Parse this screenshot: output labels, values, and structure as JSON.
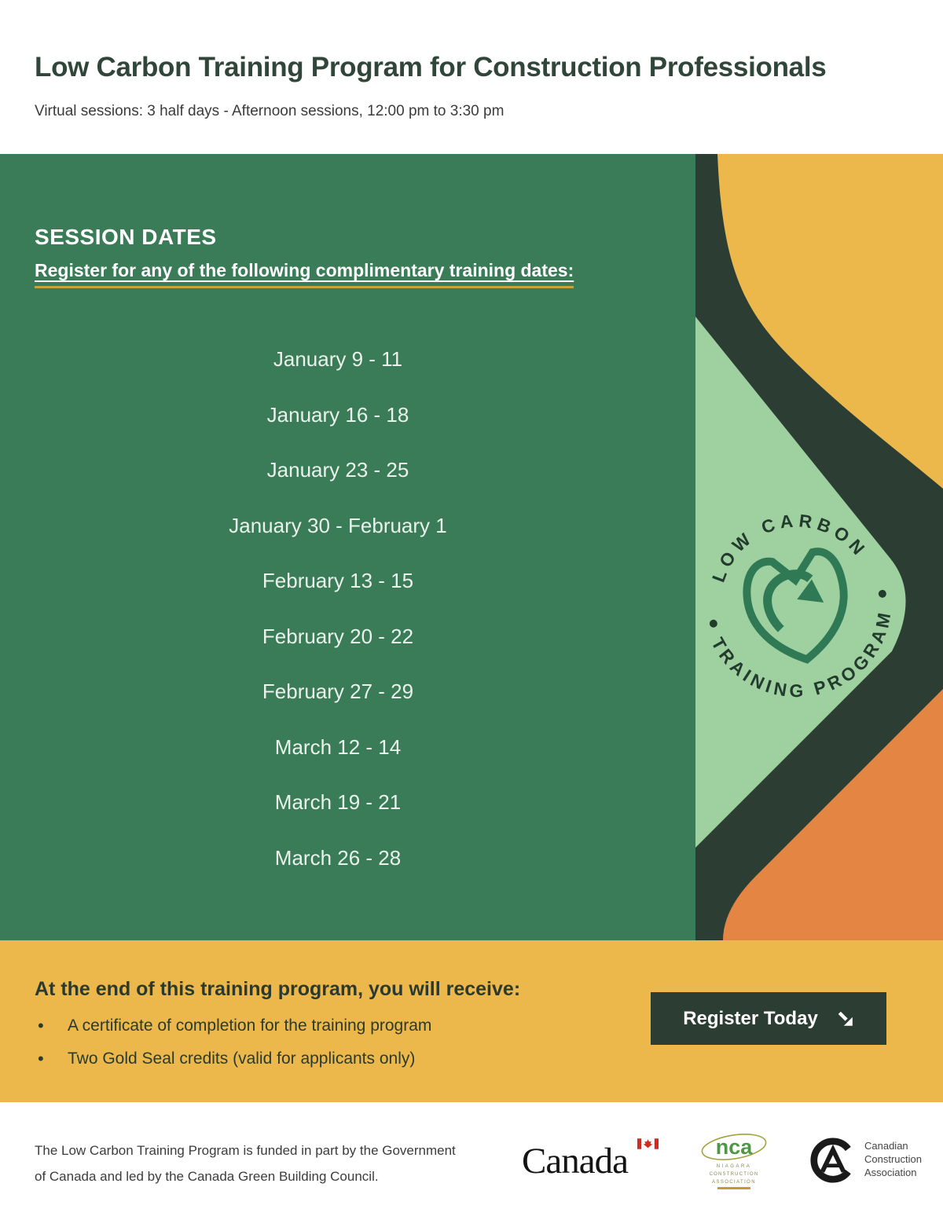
{
  "colors": {
    "title_green": "#31463A",
    "main_green": "#3A7B58",
    "dark_green": "#2C3E33",
    "yellow": "#ECB84B",
    "light_green": "#9ED0A0",
    "orange": "#E58544",
    "gold_underline": "#C9A23C",
    "flag_red": "#D52B1E"
  },
  "header": {
    "title": "Low Carbon Training Program for Construction Professionals",
    "subtitle": "Virtual sessions: 3 half days - Afternoon sessions, 12:00 pm to 3:30 pm"
  },
  "session": {
    "heading": "SESSION DATES",
    "register_line": "Register for any of the following complimentary training dates:",
    "dates": [
      "January 9 - 11",
      "January 16 - 18",
      "January 23 - 25",
      "January 30 - February 1",
      "February 13 - 15",
      "February 20 - 22",
      "February 27 - 29",
      "March 12 - 14",
      "March 19 - 21",
      "March 26 - 28"
    ]
  },
  "badge": {
    "arc_top": "LOW CARBON",
    "arc_bottom": "TRAINING PROGRAM"
  },
  "benefits": {
    "heading": "At the end of this training program, you will receive:",
    "items": [
      "A certificate of completion for the training program",
      "Two Gold Seal credits (valid for applicants only)"
    ],
    "register_button": "Register Today"
  },
  "footer": {
    "line1": "The Low Carbon Training Program is funded in part by the Government",
    "line2": "of Canada and led by the Canada Green Building Council.",
    "canada_wordmark": "Canada",
    "nca_monogram": "nca",
    "nca_lines": [
      "NIAGARA",
      "CONSTRUCTION",
      "ASSOCIATION"
    ],
    "cca_lines": [
      "Canadian",
      "Construction",
      "Association"
    ]
  }
}
